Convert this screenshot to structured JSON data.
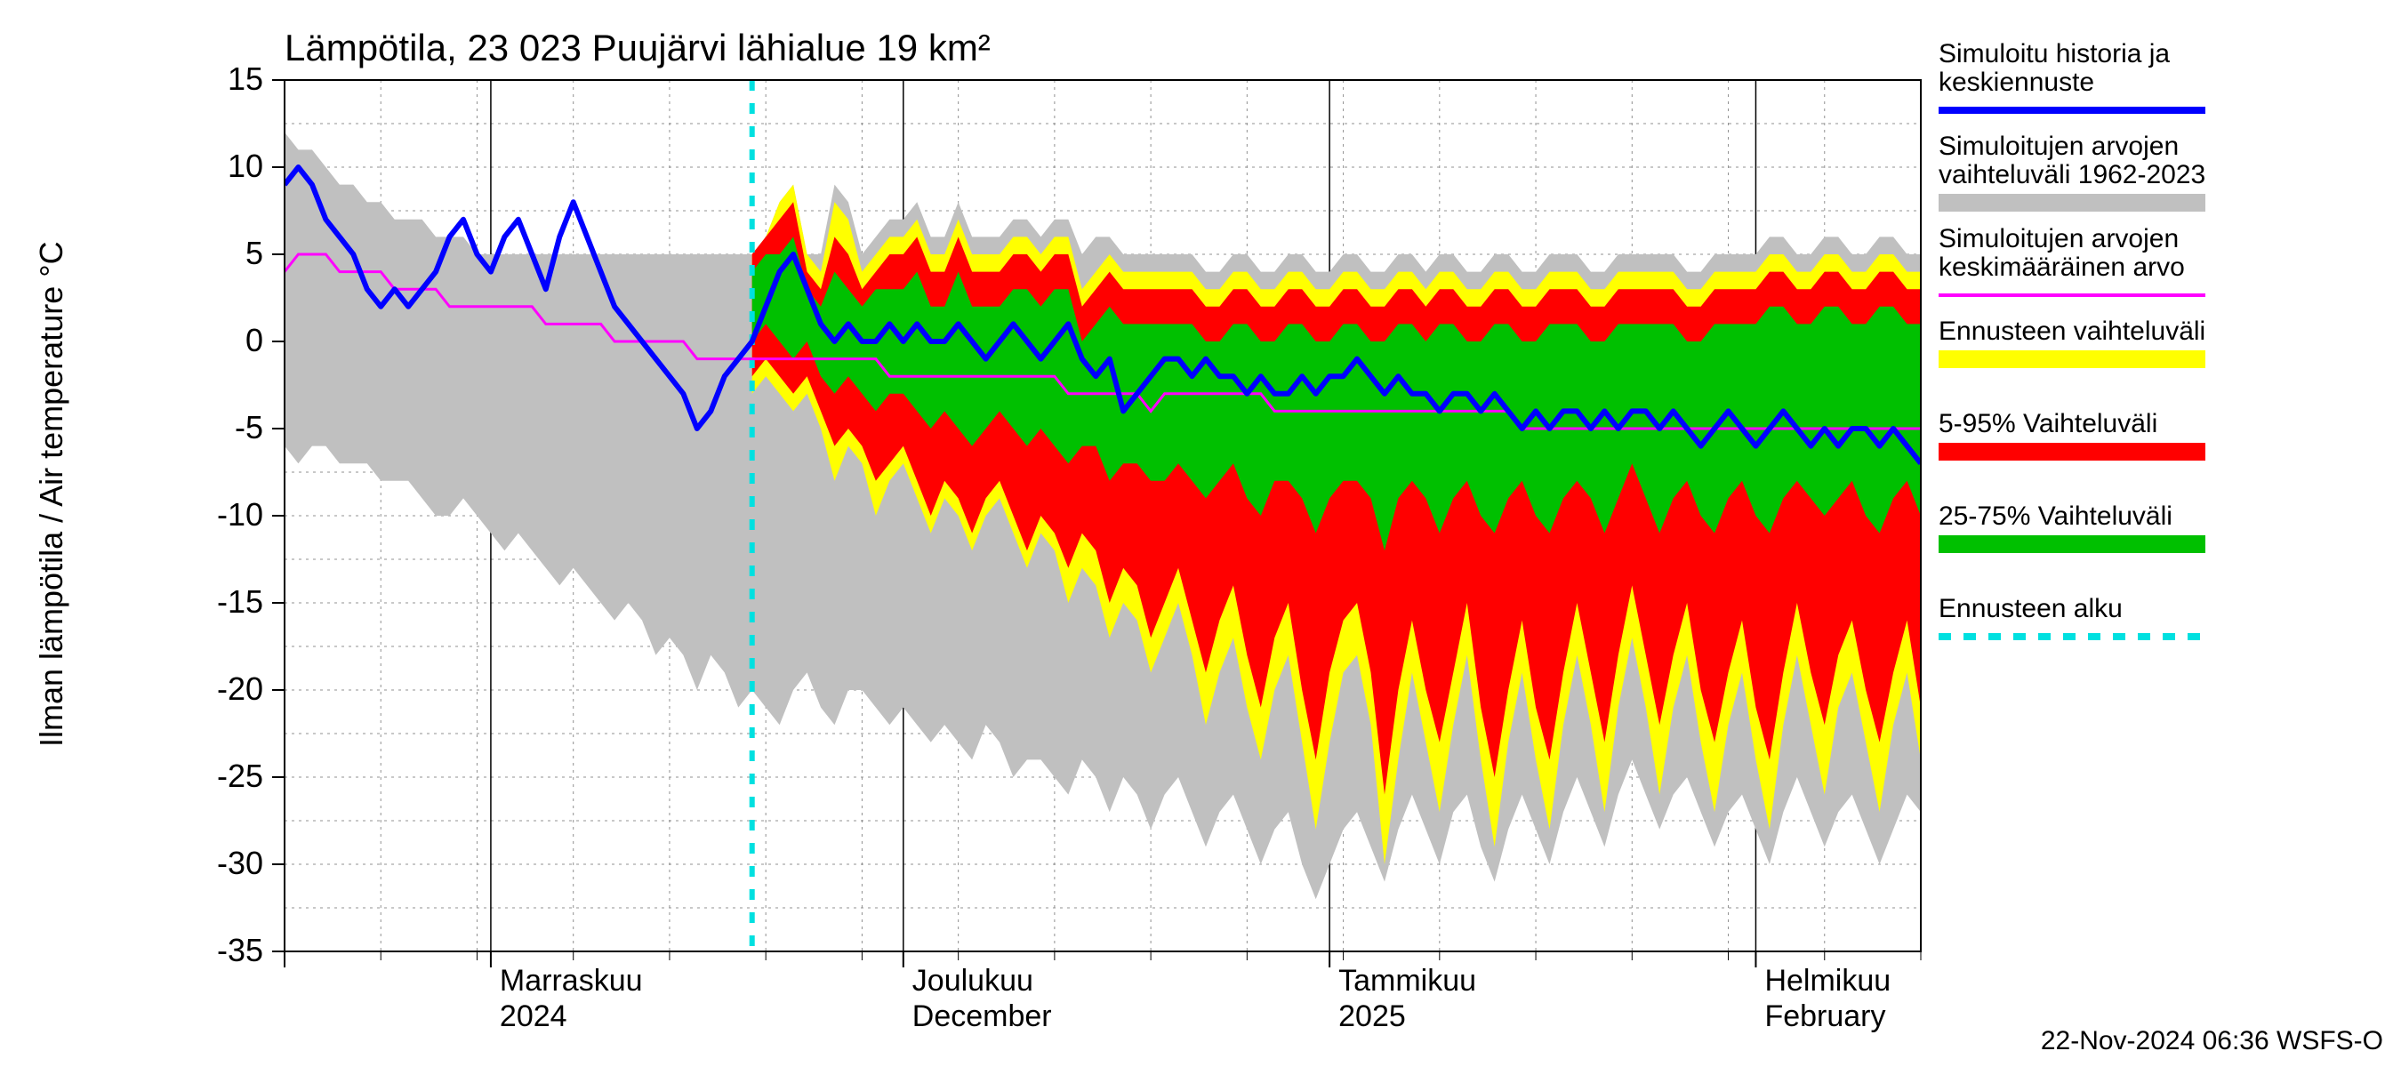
{
  "chart": {
    "type": "forecast-band-line",
    "title": "Lämpötila, 23 023 Puujärvi lähialue 19 km²",
    "ylabel": "Ilman lämpötila / Air temperature    °C",
    "footer": "22-Nov-2024 06:36 WSFS-O",
    "background_color": "#ffffff",
    "plot_border_color": "#000000",
    "grid_major_color": "#000000",
    "grid_minor_color": "#909090",
    "grid_minor_dash": "3,5",
    "ylim": [
      -35,
      15
    ],
    "yticks": [
      -35,
      -30,
      -25,
      -20,
      -15,
      -10,
      -5,
      0,
      5,
      10,
      15
    ],
    "x_count": 120,
    "x_major_ticks": [
      {
        "pos": 0
      },
      {
        "pos": 15,
        "label1": "Marraskuu",
        "label2": "2024"
      },
      {
        "pos": 45,
        "label1": "Joulukuu",
        "label2": "December"
      },
      {
        "pos": 76,
        "label1": "Tammikuu",
        "label2": "2025"
      },
      {
        "pos": 107,
        "label1": "Helmikuu",
        "label2": "February"
      }
    ],
    "x_minor_step": 7,
    "forecast_start_x": 34,
    "colors": {
      "gray_band": "#c0c0c0",
      "yellow_band": "#ffff00",
      "red_band": "#ff0000",
      "green_band": "#00c000",
      "blue_line": "#0000ff",
      "magenta_line": "#ff00ff",
      "cyan_dash": "#00e0e0"
    },
    "line_widths": {
      "blue": 6,
      "magenta": 3,
      "cyan": 6
    },
    "legend": [
      {
        "key": "blue_line",
        "style": "line",
        "label1": "Simuloitu historia ja",
        "label2": "keskiennuste"
      },
      {
        "key": "gray_band",
        "style": "band",
        "label1": "Simuloitujen arvojen",
        "label2": "vaihteluväli 1962-2023"
      },
      {
        "key": "magenta_line",
        "style": "line",
        "label1": "Simuloitujen arvojen",
        "label2": "keskimääräinen arvo"
      },
      {
        "key": "yellow_band",
        "style": "band",
        "label1": "Ennusteen vaihteluväli",
        "label2": ""
      },
      {
        "key": "red_band",
        "style": "band",
        "label1": "5-95% Vaihteluväli",
        "label2": ""
      },
      {
        "key": "green_band",
        "style": "band",
        "label1": "25-75% Vaihteluväli",
        "label2": ""
      },
      {
        "key": "cyan_dash",
        "style": "dash",
        "label1": "Ennusteen alku",
        "label2": ""
      }
    ],
    "series": {
      "gray_hi": [
        12,
        11,
        11,
        10,
        9,
        9,
        8,
        8,
        7,
        7,
        7,
        6,
        6,
        6,
        5,
        5,
        5,
        5,
        5,
        5,
        5,
        5,
        5,
        5,
        5,
        5,
        5,
        5,
        5,
        5,
        5,
        5,
        5,
        5,
        5,
        6,
        8,
        9,
        5,
        5,
        9,
        8,
        5,
        6,
        7,
        7,
        8,
        6,
        6,
        8,
        6,
        6,
        6,
        7,
        7,
        6,
        7,
        7,
        5,
        6,
        6,
        5,
        5,
        5,
        5,
        5,
        5,
        4,
        4,
        5,
        5,
        4,
        4,
        5,
        5,
        4,
        4,
        5,
        5,
        4,
        4,
        5,
        5,
        4,
        5,
        5,
        4,
        4,
        5,
        5,
        4,
        4,
        5,
        5,
        5,
        4,
        4,
        5,
        5,
        5,
        5,
        5,
        4,
        4,
        5,
        5,
        5,
        5,
        6,
        6,
        5,
        5,
        6,
        6,
        5,
        5,
        6,
        6,
        5,
        5
      ],
      "gray_lo": [
        -6,
        -7,
        -6,
        -6,
        -7,
        -7,
        -7,
        -8,
        -8,
        -8,
        -9,
        -10,
        -10,
        -9,
        -10,
        -11,
        -12,
        -11,
        -12,
        -13,
        -14,
        -13,
        -14,
        -15,
        -16,
        -15,
        -16,
        -18,
        -17,
        -18,
        -20,
        -18,
        -19,
        -21,
        -20,
        -21,
        -22,
        -20,
        -19,
        -21,
        -22,
        -20,
        -20,
        -21,
        -22,
        -21,
        -22,
        -23,
        -22,
        -23,
        -24,
        -22,
        -23,
        -25,
        -24,
        -24,
        -25,
        -26,
        -24,
        -25,
        -27,
        -25,
        -26,
        -28,
        -26,
        -25,
        -27,
        -29,
        -27,
        -26,
        -28,
        -30,
        -28,
        -27,
        -30,
        -32,
        -30,
        -28,
        -27,
        -29,
        -31,
        -28,
        -26,
        -28,
        -30,
        -27,
        -26,
        -29,
        -31,
        -28,
        -26,
        -28,
        -30,
        -27,
        -25,
        -27,
        -29,
        -26,
        -24,
        -26,
        -28,
        -26,
        -25,
        -27,
        -29,
        -27,
        -26,
        -28,
        -30,
        -27,
        -25,
        -27,
        -29,
        -27,
        -26,
        -28,
        -30,
        -28,
        -26,
        -27
      ],
      "yellow_hi": [
        null,
        null,
        null,
        null,
        null,
        null,
        null,
        null,
        null,
        null,
        null,
        null,
        null,
        null,
        null,
        null,
        null,
        null,
        null,
        null,
        null,
        null,
        null,
        null,
        null,
        null,
        null,
        null,
        null,
        null,
        null,
        null,
        null,
        null,
        5,
        6,
        8,
        9,
        5,
        4,
        8,
        7,
        4,
        5,
        6,
        6,
        7,
        5,
        5,
        7,
        5,
        5,
        5,
        6,
        6,
        5,
        6,
        6,
        3,
        4,
        5,
        4,
        4,
        4,
        4,
        4,
        4,
        3,
        3,
        4,
        4,
        3,
        3,
        4,
        4,
        3,
        3,
        4,
        4,
        3,
        3,
        4,
        4,
        3,
        4,
        4,
        3,
        3,
        4,
        4,
        3,
        3,
        4,
        4,
        4,
        3,
        3,
        4,
        4,
        4,
        4,
        4,
        3,
        3,
        4,
        4,
        4,
        4,
        5,
        5,
        4,
        4,
        5,
        5,
        4,
        4,
        5,
        5,
        4,
        4
      ],
      "yellow_lo": [
        null,
        null,
        null,
        null,
        null,
        null,
        null,
        null,
        null,
        null,
        null,
        null,
        null,
        null,
        null,
        null,
        null,
        null,
        null,
        null,
        null,
        null,
        null,
        null,
        null,
        null,
        null,
        null,
        null,
        null,
        null,
        null,
        null,
        null,
        -3,
        -2,
        -3,
        -4,
        -3,
        -5,
        -8,
        -6,
        -7,
        -10,
        -8,
        -7,
        -9,
        -11,
        -9,
        -10,
        -12,
        -10,
        -9,
        -11,
        -13,
        -11,
        -12,
        -15,
        -13,
        -14,
        -17,
        -15,
        -16,
        -19,
        -17,
        -15,
        -18,
        -22,
        -19,
        -17,
        -21,
        -24,
        -20,
        -18,
        -23,
        -28,
        -23,
        -19,
        -18,
        -22,
        -30,
        -24,
        -19,
        -23,
        -27,
        -22,
        -18,
        -24,
        -29,
        -23,
        -19,
        -24,
        -28,
        -22,
        -18,
        -22,
        -27,
        -21,
        -17,
        -21,
        -26,
        -21,
        -18,
        -23,
        -27,
        -22,
        -19,
        -24,
        -28,
        -22,
        -18,
        -22,
        -26,
        -21,
        -19,
        -23,
        -27,
        -22,
        -19,
        -24
      ],
      "red_hi": [
        null,
        null,
        null,
        null,
        null,
        null,
        null,
        null,
        null,
        null,
        null,
        null,
        null,
        null,
        null,
        null,
        null,
        null,
        null,
        null,
        null,
        null,
        null,
        null,
        null,
        null,
        null,
        null,
        null,
        null,
        null,
        null,
        null,
        null,
        5,
        6,
        7,
        8,
        4,
        3,
        6,
        5,
        3,
        4,
        5,
        5,
        6,
        4,
        4,
        6,
        4,
        4,
        4,
        5,
        5,
        4,
        5,
        5,
        2,
        3,
        4,
        3,
        3,
        3,
        3,
        3,
        3,
        2,
        2,
        3,
        3,
        2,
        2,
        3,
        3,
        2,
        2,
        3,
        3,
        2,
        2,
        3,
        3,
        2,
        3,
        3,
        2,
        2,
        3,
        3,
        2,
        2,
        3,
        3,
        3,
        2,
        2,
        3,
        3,
        3,
        3,
        3,
        2,
        2,
        3,
        3,
        3,
        3,
        4,
        4,
        3,
        3,
        4,
        4,
        3,
        3,
        4,
        4,
        3,
        3
      ],
      "red_lo": [
        null,
        null,
        null,
        null,
        null,
        null,
        null,
        null,
        null,
        null,
        null,
        null,
        null,
        null,
        null,
        null,
        null,
        null,
        null,
        null,
        null,
        null,
        null,
        null,
        null,
        null,
        null,
        null,
        null,
        null,
        null,
        null,
        null,
        null,
        -2,
        -1,
        -2,
        -3,
        -2,
        -4,
        -6,
        -5,
        -6,
        -8,
        -7,
        -6,
        -8,
        -10,
        -8,
        -9,
        -11,
        -9,
        -8,
        -10,
        -12,
        -10,
        -11,
        -13,
        -11,
        -12,
        -15,
        -13,
        -14,
        -17,
        -15,
        -13,
        -16,
        -19,
        -16,
        -14,
        -18,
        -21,
        -17,
        -15,
        -20,
        -24,
        -19,
        -16,
        -15,
        -19,
        -26,
        -20,
        -16,
        -20,
        -23,
        -19,
        -15,
        -21,
        -25,
        -20,
        -16,
        -21,
        -24,
        -19,
        -15,
        -19,
        -23,
        -18,
        -14,
        -18,
        -22,
        -18,
        -15,
        -20,
        -23,
        -19,
        -16,
        -21,
        -24,
        -19,
        -15,
        -19,
        -22,
        -18,
        -16,
        -20,
        -23,
        -19,
        -16,
        -21
      ],
      "green_hi": [
        null,
        null,
        null,
        null,
        null,
        null,
        null,
        null,
        null,
        null,
        null,
        null,
        null,
        null,
        null,
        null,
        null,
        null,
        null,
        null,
        null,
        null,
        null,
        null,
        null,
        null,
        null,
        null,
        null,
        null,
        null,
        null,
        null,
        null,
        4,
        5,
        5,
        6,
        3,
        2,
        4,
        3,
        2,
        3,
        3,
        3,
        4,
        2,
        2,
        4,
        2,
        2,
        2,
        3,
        3,
        2,
        3,
        3,
        0,
        1,
        2,
        1,
        1,
        1,
        1,
        1,
        1,
        0,
        0,
        1,
        1,
        0,
        0,
        1,
        1,
        0,
        0,
        1,
        1,
        0,
        0,
        1,
        1,
        0,
        1,
        1,
        0,
        0,
        1,
        1,
        0,
        0,
        1,
        1,
        1,
        0,
        0,
        1,
        1,
        1,
        1,
        1,
        0,
        0,
        1,
        1,
        1,
        1,
        2,
        2,
        1,
        1,
        2,
        2,
        1,
        1,
        2,
        2,
        1,
        1
      ],
      "green_lo": [
        null,
        null,
        null,
        null,
        null,
        null,
        null,
        null,
        null,
        null,
        null,
        null,
        null,
        null,
        null,
        null,
        null,
        null,
        null,
        null,
        null,
        null,
        null,
        null,
        null,
        null,
        null,
        null,
        null,
        null,
        null,
        null,
        null,
        null,
        0,
        1,
        0,
        -1,
        0,
        -2,
        -3,
        -2,
        -3,
        -4,
        -3,
        -3,
        -4,
        -5,
        -4,
        -5,
        -6,
        -5,
        -4,
        -5,
        -6,
        -5,
        -6,
        -7,
        -6,
        -6,
        -8,
        -7,
        -7,
        -8,
        -8,
        -7,
        -8,
        -9,
        -8,
        -7,
        -9,
        -10,
        -8,
        -8,
        -9,
        -11,
        -9,
        -8,
        -8,
        -9,
        -12,
        -9,
        -8,
        -9,
        -11,
        -9,
        -8,
        -10,
        -11,
        -9,
        -8,
        -10,
        -11,
        -9,
        -8,
        -9,
        -11,
        -9,
        -7,
        -9,
        -11,
        -9,
        -8,
        -10,
        -11,
        -9,
        -8,
        -10,
        -11,
        -9,
        -8,
        -9,
        -10,
        -9,
        -8,
        -10,
        -11,
        -9,
        -8,
        -10
      ],
      "blue": [
        9,
        10,
        9,
        7,
        6,
        5,
        3,
        2,
        3,
        2,
        3,
        4,
        6,
        7,
        5,
        4,
        6,
        7,
        5,
        3,
        6,
        8,
        6,
        4,
        2,
        1,
        0,
        -1,
        -2,
        -3,
        -5,
        -4,
        -2,
        -1,
        0,
        2,
        4,
        5,
        3,
        1,
        0,
        1,
        0,
        0,
        1,
        0,
        1,
        0,
        0,
        1,
        0,
        -1,
        0,
        1,
        0,
        -1,
        0,
        1,
        -1,
        -2,
        -1,
        -4,
        -3,
        -2,
        -1,
        -1,
        -2,
        -1,
        -2,
        -2,
        -3,
        -2,
        -3,
        -3,
        -2,
        -3,
        -2,
        -2,
        -1,
        -2,
        -3,
        -2,
        -3,
        -3,
        -4,
        -3,
        -3,
        -4,
        -3,
        -4,
        -5,
        -4,
        -5,
        -4,
        -4,
        -5,
        -4,
        -5,
        -4,
        -4,
        -5,
        -4,
        -5,
        -6,
        -5,
        -4,
        -5,
        -6,
        -5,
        -4,
        -5,
        -6,
        -5,
        -6,
        -5,
        -5,
        -6,
        -5,
        -6,
        -7
      ],
      "magenta": [
        4,
        5,
        5,
        5,
        4,
        4,
        4,
        4,
        3,
        3,
        3,
        3,
        2,
        2,
        2,
        2,
        2,
        2,
        2,
        1,
        1,
        1,
        1,
        1,
        0,
        0,
        0,
        0,
        0,
        0,
        -1,
        -1,
        -1,
        -1,
        -1,
        -1,
        -1,
        -1,
        -1,
        -1,
        -1,
        -1,
        -1,
        -1,
        -2,
        -2,
        -2,
        -2,
        -2,
        -2,
        -2,
        -2,
        -2,
        -2,
        -2,
        -2,
        -2,
        -3,
        -3,
        -3,
        -3,
        -3,
        -3,
        -4,
        -3,
        -3,
        -3,
        -3,
        -3,
        -3,
        -3,
        -3,
        -4,
        -4,
        -4,
        -4,
        -4,
        -4,
        -4,
        -4,
        -4,
        -4,
        -4,
        -4,
        -4,
        -4,
        -4,
        -4,
        -4,
        -4,
        -5,
        -5,
        -5,
        -5,
        -5,
        -5,
        -5,
        -5,
        -5,
        -5,
        -5,
        -5,
        -5,
        -5,
        -5,
        -5,
        -5,
        -5,
        -5,
        -5,
        -5,
        -5,
        -5,
        -5,
        -5,
        -5,
        -5,
        -5,
        -5,
        -5
      ]
    }
  }
}
